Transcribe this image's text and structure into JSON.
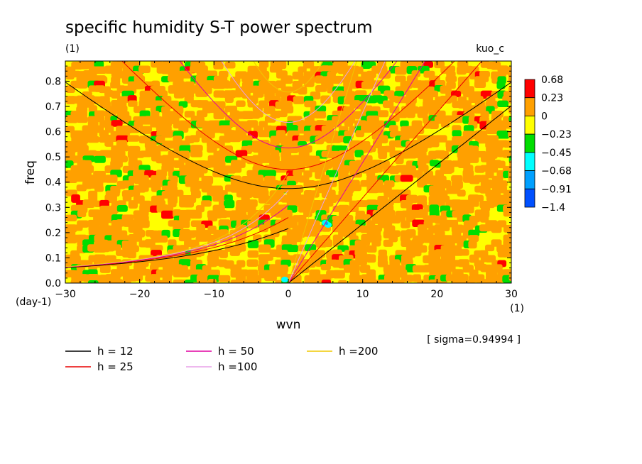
{
  "chart_data": {
    "type": "heatmap",
    "title": "specific humidity S-T power spectrum",
    "subtitle": "(1)",
    "model_label": "kuo_c",
    "xlabel": "wvn",
    "x_unit": "(1)",
    "ylabel": "freq",
    "y_unit": "(day-1)",
    "xlim": [
      -30,
      30
    ],
    "ylim": [
      0,
      0.88
    ],
    "x_ticks": [
      -30,
      -20,
      -10,
      0,
      10,
      20,
      30
    ],
    "x_tick_labels": [
      "−30",
      "−20",
      "−10",
      "0",
      "10",
      "20",
      "30"
    ],
    "y_ticks": [
      0,
      0.1,
      0.2,
      0.3,
      0.4,
      0.5,
      0.6,
      0.7,
      0.8
    ],
    "y_tick_labels": [
      "0.0",
      "0.1",
      "0.2",
      "0.3",
      "0.4",
      "0.5",
      "0.6",
      "0.7",
      "0.8"
    ],
    "colorbar": {
      "levels": [
        "0.68",
        "0.23",
        "0",
        "−0.23",
        "−0.45",
        "−0.68",
        "−0.91",
        "−1.4"
      ],
      "colors": [
        "#ff0000",
        "#ffa000",
        "#ffff00",
        "#00dd00",
        "#00ffff",
        "#00a0ff",
        "#0050ff"
      ]
    },
    "annotation": "[ sigma=0.94994 ]",
    "dispersion_curves": [
      {
        "label": "h = 12",
        "color": "#000000",
        "h": 12
      },
      {
        "label": "h = 25",
        "color": "#e80000",
        "h": 25
      },
      {
        "label": "h = 50",
        "color": "#e000a0",
        "h": 50
      },
      {
        "label": "h =100",
        "color": "#e8a0e8",
        "h": 100
      },
      {
        "label": "h =200",
        "color": "#f0c800",
        "h": 200
      }
    ],
    "curve_families": [
      "antisymmetric-inertio-gravity",
      "kelvin"
    ]
  }
}
